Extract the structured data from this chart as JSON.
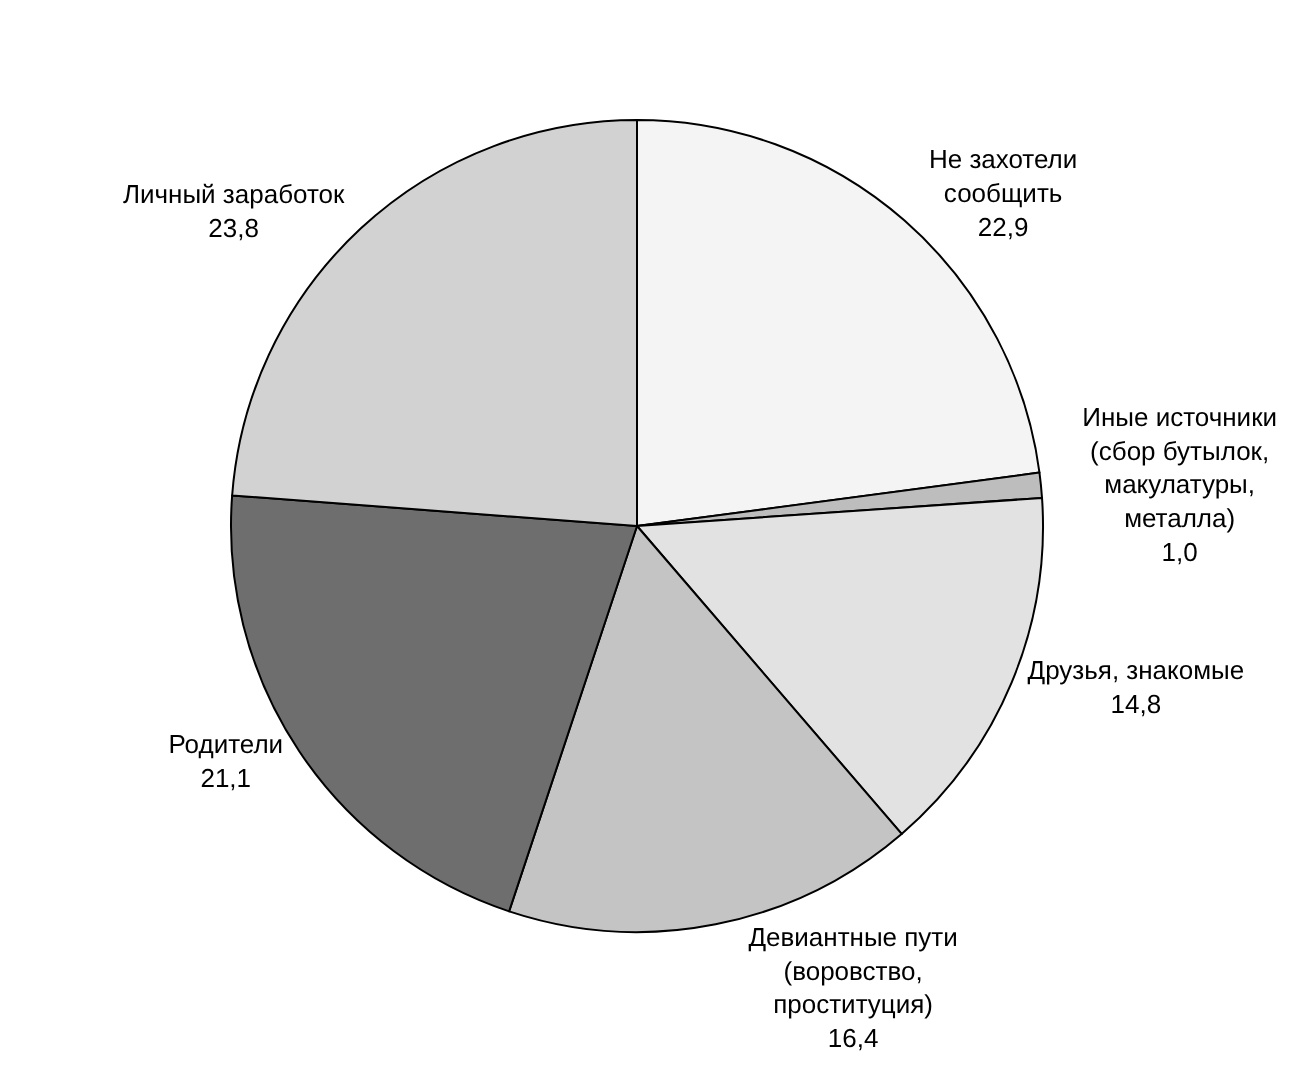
{
  "chart_data": {
    "type": "pie",
    "categories": [
      "Не захотели сообщить",
      "Иные источники (сбор бутылок, макулатуры, металла)",
      "Друзья, знакомые",
      "Девиантные пути (воровство, проституция)",
      "Родители",
      "Личный заработок"
    ],
    "values": [
      22.9,
      1.0,
      14.8,
      16.4,
      21.1,
      23.8
    ],
    "value_labels": [
      "22,9",
      "1,0",
      "14,8",
      "16,4",
      "21,1",
      "23,8"
    ],
    "colors": [
      "#f4f4f4",
      "#bdbdbd",
      "#e2e2e2",
      "#c4c4c4",
      "#6e6e6e",
      "#d2d2d2"
    ],
    "legend": false
  }
}
